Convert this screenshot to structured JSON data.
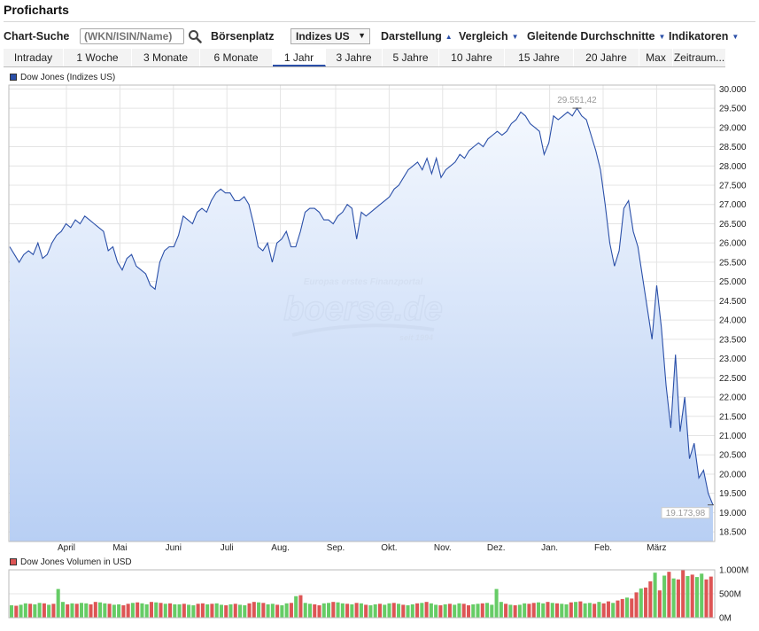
{
  "page": {
    "title": "Proficharts"
  },
  "toolbar": {
    "search_label": "Chart-Suche",
    "search_placeholder": "(WKN/ISIN/Name)",
    "exchange_label": "Börsenplatz",
    "exchange_value": "Indizes US",
    "menus": [
      {
        "label": "Darstellung",
        "caret": "▲"
      },
      {
        "label": "Vergleich",
        "caret": "▼"
      },
      {
        "label": "Gleitende Durchschnitte",
        "caret": "▼"
      },
      {
        "label": "Indikatoren",
        "caret": "▼"
      }
    ]
  },
  "tabs": [
    {
      "label": "Intraday"
    },
    {
      "label": "1 Woche"
    },
    {
      "label": "3 Monate"
    },
    {
      "label": "6 Monate"
    },
    {
      "label": "1 Jahr",
      "active": true
    },
    {
      "label": "3 Jahre"
    },
    {
      "label": "5 Jahre"
    },
    {
      "label": "10 Jahre"
    },
    {
      "label": "15 Jahre"
    },
    {
      "label": "20 Jahre"
    },
    {
      "label": "Max"
    },
    {
      "label": "Zeitraum..."
    }
  ],
  "watermark": {
    "top": "Europas erstes Finanzportal",
    "brand": "boerse.de",
    "since": "seit 1994"
  },
  "colors": {
    "line": "#2a4fa8",
    "fill_top": "#f4f8fe",
    "fill_bottom": "#b8cff4",
    "vol_up": "#66cc66",
    "vol_down": "#dd5555"
  },
  "chart_data": [
    {
      "type": "area",
      "legend": "Dow Jones (Indizes US)",
      "ylim": [
        18250,
        30100
      ],
      "yticks": [
        "30.000",
        "29.500",
        "29.000",
        "28.500",
        "28.000",
        "27.500",
        "27.000",
        "26.500",
        "26.000",
        "25.500",
        "25.000",
        "24.500",
        "24.000",
        "23.500",
        "23.000",
        "22.500",
        "22.000",
        "21.500",
        "21.000",
        "20.500",
        "20.000",
        "19.500",
        "19.000",
        "18.500"
      ],
      "xticks": [
        "April",
        "Mai",
        "Juni",
        "Juli",
        "Aug.",
        "Sep.",
        "Okt.",
        "Nov.",
        "Dez.",
        "Jan.",
        "Feb.",
        "März"
      ],
      "max_label": "29.551,42",
      "last_label": "19.173,98",
      "series": [
        {
          "values": [
            25900,
            25700,
            25500,
            25700,
            25800,
            25700,
            26000,
            25600,
            25700,
            26000,
            26200,
            26300,
            26500,
            26400,
            26600,
            26500,
            26700,
            26600,
            26500,
            26400,
            26300,
            25800,
            25900,
            25500,
            25300,
            25600,
            25700,
            25400,
            25300,
            25200,
            24900,
            24800,
            25500,
            25800,
            25900,
            25900,
            26200,
            26700,
            26600,
            26500,
            26800,
            26900,
            26800,
            27100,
            27300,
            27400,
            27300,
            27300,
            27100,
            27100,
            27200,
            27000,
            26500,
            25900,
            25800,
            26000,
            25500,
            26000,
            26100,
            26300,
            25900,
            25900,
            26300,
            26800,
            26900,
            26900,
            26800,
            26600,
            26600,
            26500,
            26700,
            26800,
            27000,
            26900,
            26100,
            26800,
            26700,
            26800,
            26900,
            27000,
            27100,
            27200,
            27400,
            27500,
            27700,
            27900,
            28000,
            28100,
            27900,
            28200,
            27800,
            28200,
            27700,
            27900,
            28000,
            28100,
            28300,
            28200,
            28400,
            28500,
            28600,
            28500,
            28700,
            28800,
            28900,
            28800,
            28900,
            29100,
            29200,
            29400,
            29300,
            29100,
            29000,
            28900,
            28300,
            28600,
            29300,
            29200,
            29300,
            29400,
            29300,
            29500,
            29300,
            29200,
            28800,
            28400,
            27900,
            27000,
            26000,
            25400,
            25800,
            26900,
            27100,
            26300,
            25900,
            25100,
            24300,
            23500,
            24900,
            23800,
            22300,
            21200,
            23100,
            21100,
            22000,
            20400,
            20800,
            19900,
            20100,
            19500,
            19200
          ]
        }
      ]
    },
    {
      "type": "bar",
      "legend": "Dow Jones Volumen in USD",
      "yticks": [
        "1.000M",
        "500M",
        "0M"
      ],
      "ylim": [
        0,
        1000
      ],
      "values": [
        260,
        250,
        270,
        300,
        290,
        280,
        310,
        300,
        270,
        290,
        600,
        330,
        280,
        300,
        290,
        310,
        300,
        280,
        330,
        320,
        300,
        290,
        270,
        280,
        260,
        290,
        310,
        320,
        300,
        280,
        330,
        320,
        310,
        290,
        300,
        280,
        280,
        290,
        270,
        260,
        290,
        300,
        280,
        290,
        300,
        270,
        260,
        280,
        290,
        270,
        260,
        300,
        330,
        320,
        310,
        280,
        290,
        270,
        260,
        300,
        310,
        450,
        470,
        310,
        290,
        280,
        260,
        300,
        310,
        330,
        320,
        300,
        290,
        280,
        310,
        300,
        270,
        260,
        280,
        290,
        270,
        300,
        310,
        290,
        270,
        260,
        280,
        300,
        310,
        330,
        300,
        270,
        260,
        280,
        290,
        270,
        300,
        290,
        260,
        280,
        290,
        300,
        310,
        270,
        600,
        330,
        290,
        270,
        260,
        270,
        300,
        290,
        310,
        320,
        300,
        330,
        310,
        300,
        290,
        280,
        320,
        330,
        340,
        300,
        310,
        290,
        330,
        300,
        340,
        310,
        360,
        390,
        420,
        400,
        530,
        610,
        630,
        760,
        940,
        570,
        880,
        960,
        820,
        800,
        1050,
        870,
        900,
        850,
        920,
        800,
        860
      ],
      "colors": [
        "u",
        "d",
        "u",
        "u",
        "d",
        "u",
        "u",
        "d",
        "u",
        "d",
        "u",
        "u",
        "d",
        "u",
        "d",
        "u",
        "u",
        "d",
        "d",
        "u",
        "u",
        "d",
        "u",
        "u",
        "d",
        "d",
        "u",
        "d",
        "u",
        "u",
        "d",
        "u",
        "d",
        "u",
        "d",
        "u",
        "u",
        "d",
        "u",
        "u",
        "d",
        "d",
        "u",
        "d",
        "u",
        "u",
        "d",
        "u",
        "d",
        "u",
        "u",
        "d",
        "d",
        "u",
        "d",
        "u",
        "u",
        "d",
        "u",
        "u",
        "d",
        "u",
        "d",
        "u",
        "u",
        "d",
        "d",
        "u",
        "u",
        "d",
        "u",
        "u",
        "d",
        "u",
        "d",
        "u",
        "d",
        "u",
        "u",
        "d",
        "u",
        "u",
        "d",
        "u",
        "d",
        "u",
        "u",
        "d",
        "u",
        "d",
        "u",
        "u",
        "d",
        "u",
        "d",
        "u",
        "u",
        "d",
        "d",
        "u",
        "u",
        "d",
        "u",
        "u",
        "u",
        "u",
        "d",
        "u",
        "d",
        "u",
        "u",
        "d",
        "d",
        "u",
        "u",
        "d",
        "u",
        "d",
        "u",
        "u",
        "d",
        "u",
        "d",
        "u",
        "u",
        "d",
        "u",
        "d",
        "d",
        "u",
        "d",
        "d",
        "u",
        "d",
        "d",
        "u",
        "d",
        "d",
        "u",
        "d",
        "u",
        "d",
        "u",
        "d",
        "d",
        "u",
        "d",
        "u",
        "u",
        "d",
        "d"
      ]
    }
  ]
}
